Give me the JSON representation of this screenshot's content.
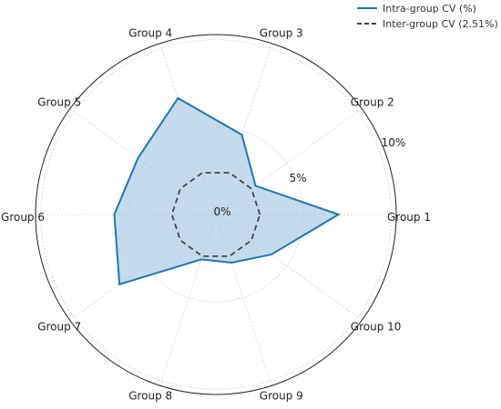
{
  "chart_data": {
    "type": "radar",
    "categories": [
      "Group 1",
      "Group 2",
      "Group 3",
      "Group 4",
      "Group 5",
      "Group 6",
      "Group 7",
      "Group 8",
      "Group 9",
      "Group 10"
    ],
    "series": [
      {
        "name": "Intra-group CV (%)",
        "values": [
          7.0,
          2.8,
          4.8,
          7.0,
          5.5,
          5.8,
          6.8,
          2.7,
          2.9,
          3.9
        ],
        "color": "#1f77b4",
        "fill": "#a6c8e4",
        "style": "solid"
      },
      {
        "name": "Inter-group CV (2.51%)",
        "values": [
          2.51,
          2.51,
          2.51,
          2.51,
          2.51,
          2.51,
          2.51,
          2.51,
          2.51,
          2.51
        ],
        "color": "#444444",
        "style": "dashed"
      }
    ],
    "radial_ticks": [
      0,
      5,
      10
    ],
    "radial_tick_labels": [
      "0%",
      "5%",
      "10%"
    ],
    "rlim": [
      0,
      10.3
    ],
    "grid": true,
    "legend_position": "top-right"
  }
}
